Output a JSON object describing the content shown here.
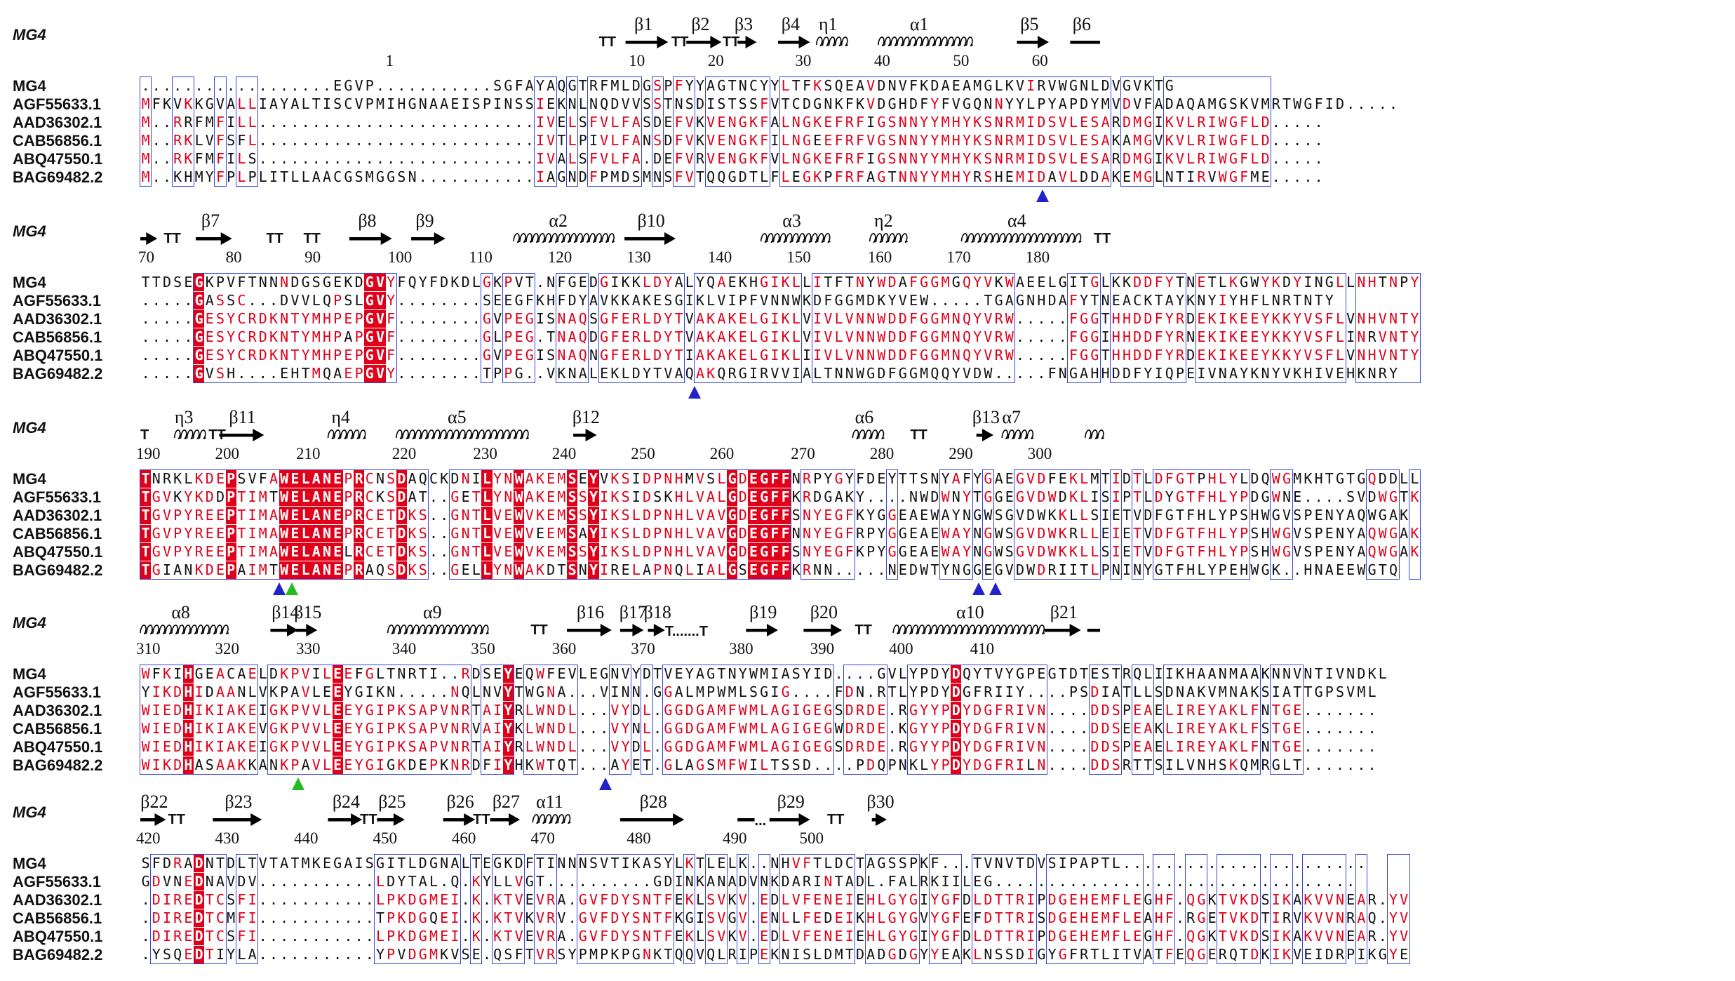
{
  "figure": {
    "ref_label": "MG4",
    "blocks": [
      {
        "start_col": 0,
        "ss": [
          {
            "t": "TT",
            "col": 43.0
          },
          {
            "t": "arrow",
            "name": "β1",
            "from": 45.5,
            "to": 49.5
          },
          {
            "t": "TT",
            "col": 49.8
          },
          {
            "t": "arrow",
            "name": "β2",
            "from": 51.2,
            "to": 54.5
          },
          {
            "t": "TT",
            "col": 54.6
          },
          {
            "t": "arrow",
            "name": "β3",
            "from": 56.0,
            "to": 57.8
          },
          {
            "t": "arrow",
            "name": "β4",
            "from": 59.8,
            "to": 62.8
          },
          {
            "t": "helix",
            "name": "η1",
            "from": 63.4,
            "to": 66.2
          },
          {
            "t": "helix",
            "name": "α1",
            "from": 69.2,
            "to": 77.5
          },
          {
            "t": "arrow",
            "name": "β5",
            "from": 82.2,
            "to": 85.2
          },
          {
            "t": "line",
            "name": "β6",
            "from": 87.2,
            "to": 90.0
          }
        ],
        "numbers": [
          {
            "n": "1",
            "col": 23.4
          },
          {
            "n": "10",
            "col": 46.2
          },
          {
            "n": "20",
            "col": 53.6
          },
          {
            "n": "30",
            "col": 61.8
          },
          {
            "n": "40",
            "col": 69.2
          },
          {
            "n": "50",
            "col": 76.6
          },
          {
            "n": "60",
            "col": 84.0
          }
        ],
        "seqs": [
          "..................EGVP...........SGFAYAQGTRFMLDGSPFYYAGTNCYYLTFKSQEAVDNVFKDAEAMGLKVIRVWGNLDVGVKTG",
          "MFKVKKGVALLIAYALTISCVPMIHGNAAEISPINSSIEKNLNQDVVSSTNSDISTSSFVTCDGNKFKVDGHDFYFVGQNNYYLPYAPDYMVDVFADAQAMGSKVMRTWGFID.....",
          "M..RRFMFILL..........................IVELSFVLFASDEFVKVENGKFALNGKEFRFIGSNNYYMHYKSNRMIDSVLESARDMGIKVLRIWGFLD.....",
          "M..RKLVFSFL..........................IVTLPIVLFANSDFVKVENGKFILNGEEFRFVGSNNYYMHYKSNRMIDSVLESAKAMGVKVLRIWGFLD.....",
          "M..RKFMFILS..........................IVALSFVLFA.DEFVRVENGKFVLNGKEFRFIGSNNYYMHYKSNRMIDSVLESARDMGIKVLRIWGFLD.....",
          "M..KHMYFPLPLITLLAACGSMGGSN...........IAGNDFPMDSMNSFVTQQGDTLFLEGKPFRFAGTNNYYMHYRSHEMIDAVLDDAKEMGLNTIRVWGFME....."
        ],
        "tris": [
          {
            "col": 84.6,
            "c": "blue"
          }
        ]
      },
      {
        "start_col": 0,
        "ss": [
          {
            "t": "arrow",
            "name": "",
            "from": 0.0,
            "to": 1.6
          },
          {
            "t": "TT",
            "col": 2.2
          },
          {
            "t": "arrow",
            "name": "β7",
            "from": 5.2,
            "to": 8.6
          },
          {
            "t": "TT",
            "col": 11.8
          },
          {
            "t": "TT",
            "col": 15.3
          },
          {
            "t": "arrow",
            "name": "β8",
            "from": 19.6,
            "to": 23.6
          },
          {
            "t": "arrow",
            "name": "β9",
            "from": 25.4,
            "to": 28.6
          },
          {
            "t": "helix",
            "name": "α2",
            "from": 35.0,
            "to": 44.0
          },
          {
            "t": "arrow",
            "name": "β10",
            "from": 45.4,
            "to": 50.2
          },
          {
            "t": "helix",
            "name": "α3",
            "from": 58.2,
            "to": 64.6
          },
          {
            "t": "helix",
            "name": "η2",
            "from": 68.4,
            "to": 71.6
          },
          {
            "t": "helix",
            "name": "α4",
            "from": 77.0,
            "to": 88.0
          },
          {
            "t": "TT",
            "col": 89.4
          }
        ],
        "numbers": [
          {
            "n": "70",
            "col": 0.2
          },
          {
            "n": "80",
            "col": 8.4
          },
          {
            "n": "90",
            "col": 15.8
          },
          {
            "n": "100",
            "col": 23.6
          },
          {
            "n": "110",
            "col": 31.2
          },
          {
            "n": "120",
            "col": 38.6
          },
          {
            "n": "130",
            "col": 46.0
          },
          {
            "n": "140",
            "col": 53.6
          },
          {
            "n": "150",
            "col": 61.0
          },
          {
            "n": "160",
            "col": 68.6
          },
          {
            "n": "170",
            "col": 76.0
          },
          {
            "n": "180",
            "col": 83.4
          }
        ],
        "seqs": [
          "TTDSEGKPVFTNNNDGSGEKDGVYFQYFDKDLGKPVT.NFGEDGIKKLDYALYQAEKHGIKLLITFTNYWDAFGGMGQYVKWAEELGITGLKKDDFYTNETLKGWYKDYINGLLNHTNPY",
          ".....GASSC...DVVLQPSLGVY........SEEGFKHFDYAVKKAKESGIKLVIPFVNNWKDFGGMDKYVEW.....TGAGNHDAFYTNEACKTAYKNYIYHFLNRTNTY",
          ".....GESYCRDKNTYMHPEPGVF........GVPEGISNAQSGFERLDYTVAKAKELGIKLVIVLVNNWDDFGGMNQYVRW.....FGGTHHDDFYRDEKIKEEYKKYVSFLVNHVNTY",
          ".....GESYCRDKNTYMHPAPGVF........GLPEG.TNAQDGFERLDYTVAKAKELGIKLVIVLVNNWDDFGGMNQYVRW.....FGGIHHDDFYRNEKIKEEYKKYVSFLINRVNTY",
          ".....GESYCRDKNTYMHPEPGVF........GVPEGISNAQNGFERLDYTIAKAKELGIKLIIVLVNNWDDFGGMNQYVRW.....FGGTHHDDFYRDEKIKEEYKKYVSFLVNHVNTY",
          ".....GVSH....EHTMQAEPGVY........TPPG..VKNALEKLDYTVAQAKQRGIRVVIALTNNWGDFGGMQQYVDW.....FNGAHHDDFYIQPEIVNAYKNYVKHIVEHKNRY"
        ],
        "tris": [
          {
            "col": 52.0,
            "c": "blue"
          }
        ]
      },
      {
        "start_col": 0,
        "ss": [
          {
            "t": "TT1",
            "col": 0.0
          },
          {
            "t": "helix",
            "name": "η3",
            "from": 3.2,
            "to": 5.6
          },
          {
            "t": "TT",
            "col": 6.4
          },
          {
            "t": "arrow",
            "name": "β11",
            "from": 7.4,
            "to": 11.6
          },
          {
            "t": "helix",
            "name": "η4",
            "from": 17.6,
            "to": 20.6
          },
          {
            "t": "helix",
            "name": "α5",
            "from": 24.0,
            "to": 36.0
          },
          {
            "t": "arrow",
            "name": "β12",
            "from": 40.6,
            "to": 42.8
          },
          {
            "t": "helix",
            "name": "α6",
            "from": 66.8,
            "to": 69.6
          },
          {
            "t": "TT",
            "col": 72.2
          },
          {
            "t": "arrow",
            "name": "β13",
            "from": 78.4,
            "to": 80.0
          },
          {
            "t": "helix",
            "name": "α7",
            "from": 80.8,
            "to": 83.2
          },
          {
            "t": "helix",
            "name": "",
            "from": 88.6,
            "to": 90.0
          }
        ],
        "numbers": [
          {
            "n": "190",
            "col": 0.0
          },
          {
            "n": "200",
            "col": 7.4
          },
          {
            "n": "210",
            "col": 15.0
          },
          {
            "n": "220",
            "col": 24.0
          },
          {
            "n": "230",
            "col": 31.6
          },
          {
            "n": "240",
            "col": 39.0
          },
          {
            "n": "250",
            "col": 46.4
          },
          {
            "n": "260",
            "col": 53.8
          },
          {
            "n": "270",
            "col": 61.4
          },
          {
            "n": "280",
            "col": 68.8
          },
          {
            "n": "290",
            "col": 76.2
          },
          {
            "n": "300",
            "col": 83.6
          }
        ],
        "seqs": [
          "TNRKLKDEPSVFAWELANEPRCNSDAQCKDNILYNWAKEMSEYVKSIDPNHMVSLGDEGFFNRPYGYFDEYTTSNYAFYGAEGVDFEKLMTIDTLDFGTPHLYLDQWGMKHTGTGQDDLL",
          "TGVKYKDDPTIMTWELANEPRCKSDAT..GETLYNWAKEMSSYIKSIDSKHLVALGDEGFFKRDGAKY....NWDWNYTGGEGVDWDKLISIPTLDYGTFHLYPDGWNE....SVDWGTK",
          "TGVPYREEPTIMAWELANEPRCETDKS..GNTLVEWVKEMSSYIKSLDPNHLVAVGDEGFFSNYEGFKYGGEAEWAYNGWSGVDWKKLLSIETVDFGTFHLYPSHWGVSPENYAQWGAK",
          "TGVPYREEPTIMAWELANEPRCETDKS..GNTLVEWVEEMSAYIKSLDPNHLVAVGDEGFFNNYEGFRPYGGEAEWAYNGWSGVDWKRLLEIETVDFGTFHLYPSHWGVSPENYAQWGAK",
          "TGVPYREEPTIMAWELANELRCETDKS..GNTLVEWVKEMSSYIKSLDPNHLVAVGDEGFFSNYEGFKPYGGEAEWAYNGWSGVDWKKLLSIETVDFGTFHLYPSHWGVSPENYAQWGAK",
          "TGIANKDEPAIMTWELANEPRAQSDKS..GELLYNWAKDTSNYIRELAPNQLIALGSEGFFKRNN.....NEDWTYNGGEGVDWDRIITLPNINYGTFHLYPEHWGK..HNAEEWGTQ"
        ],
        "tris": [
          {
            "col": 13.0,
            "c": "blue"
          },
          {
            "col": 14.2,
            "c": "green"
          },
          {
            "col": 78.6,
            "c": "blue"
          },
          {
            "col": 80.2,
            "c": "blue"
          }
        ]
      },
      {
        "start_col": 0,
        "ss": [
          {
            "t": "helix",
            "name": "α8",
            "from": 0.0,
            "to": 8.2
          },
          {
            "t": "arrow",
            "name": "β14",
            "from": 12.2,
            "to": 14.8
          },
          {
            "t": "arrow",
            "name": "β15",
            "from": 14.6,
            "to": 16.6
          },
          {
            "t": "helix",
            "name": "α9",
            "from": 23.2,
            "to": 32.2
          },
          {
            "t": "TT",
            "col": 36.6
          },
          {
            "t": "arrow",
            "name": "β16",
            "from": 40.0,
            "to": 44.2
          },
          {
            "t": "arrow",
            "name": "β17",
            "from": 45.0,
            "to": 47.2
          },
          {
            "t": "arrow",
            "name": "β18",
            "from": 47.6,
            "to": 49.2
          },
          {
            "t": "dots",
            "name": "T.......T",
            "col": 49.2
          },
          {
            "t": "arrow",
            "name": "β19",
            "from": 56.8,
            "to": 59.8
          },
          {
            "t": "arrow",
            "name": "β20",
            "from": 62.2,
            "to": 65.8
          },
          {
            "t": "TT",
            "col": 67.0
          },
          {
            "t": "helix",
            "name": "α10",
            "from": 70.6,
            "to": 84.8
          },
          {
            "t": "arrow",
            "name": "β21",
            "from": 84.8,
            "to": 88.2
          },
          {
            "t": "line",
            "name": "",
            "from": 88.8,
            "to": 90.0
          }
        ],
        "numbers": [
          {
            "n": "310",
            "col": 0.0
          },
          {
            "n": "320",
            "col": 7.4
          },
          {
            "n": "330",
            "col": 15.0
          },
          {
            "n": "340",
            "col": 24.0
          },
          {
            "n": "350",
            "col": 31.4
          },
          {
            "n": "360",
            "col": 39.0
          },
          {
            "n": "370",
            "col": 46.4
          },
          {
            "n": "380",
            "col": 55.6
          },
          {
            "n": "390",
            "col": 63.2
          },
          {
            "n": "400",
            "col": 70.6
          },
          {
            "n": "410",
            "col": 78.2
          }
        ],
        "seqs": [
          "WFKIHGEACAELDKPVILEEFGLTNRTI..RDSEYEQWFEVLEGNVYDTVEYAGTNYWMIASYID....GVLYPDYDQYTVYGPEGTDTESTRQLIIKHAANMAAKNNVNTIVNDKL",
          "YIKDHIDAANLVKPAVLEEYGIKN.....NQLNVYTWGNA...VINN.GGALMPWMLSGIG....FDN.RTLYPDYDGFRIIY....PSDIATLLSDNAKVMNAKSIATTGPSVML",
          "WIEDHIKIAKEIGKPVVLEEYGIPKSAPVNRTAIYRLWNDL...VYDL.GGDGAMFWMLAGIGEGSDRDE.RGYYPDYDGFRIVN....DDSPEAELIREYAKLFNTGE.......",
          "WIEDHIKIAKEVGKPVVLEEYGIPKSAPVNRVAIYKLWNDL...VYNL.GGDGAMFWMLAGIGEGWDRDE.KGYYPDYDGFRIVN....DDSEEAKLIREYAKLFSTGE.......",
          "WIEDHIKIAKEIGKPVVLEEYGIPKSAPVNRTAIYRLWNDL...VYDL.GGDGAMFWMLAGIGEGSDRDE.RGYYPDYDGFRIVN....DDSPEAELIREYAKLFNTGE.......",
          "WIKDHASAAKKANKPAVLEEYGIGKDEPKNRDFIYHKWTQT...AYET.GLAGSMFWILTSSD....PDQPNKLYPDYDGFRILN....DDSRTTSILVNHSKQMRGLT......."
        ],
        "tris": [
          {
            "col": 14.8,
            "c": "green"
          },
          {
            "col": 43.6,
            "c": "blue"
          }
        ]
      },
      {
        "start_col": 0,
        "ss": [
          {
            "t": "arrow",
            "name": "β22",
            "from": 0.0,
            "to": 2.4
          },
          {
            "t": "TT",
            "col": 2.6
          },
          {
            "t": "arrow",
            "name": "β23",
            "from": 6.8,
            "to": 11.4
          },
          {
            "t": "arrow",
            "name": "β24",
            "from": 17.6,
            "to": 20.8
          },
          {
            "t": "TT",
            "col": 20.6
          },
          {
            "t": "arrow",
            "name": "β25",
            "from": 22.2,
            "to": 24.8
          },
          {
            "t": "arrow",
            "name": "β26",
            "from": 28.4,
            "to": 31.4
          },
          {
            "t": "TT",
            "col": 31.2
          },
          {
            "t": "arrow",
            "name": "β27",
            "from": 32.8,
            "to": 35.6
          },
          {
            "t": "helix",
            "name": "α11",
            "from": 36.8,
            "to": 39.8
          },
          {
            "t": "arrow",
            "name": "β28",
            "from": 45.0,
            "to": 51.0
          },
          {
            "t": "line",
            "name": "",
            "from": 56.0,
            "to": 57.6
          },
          {
            "t": "dots",
            "name": "...",
            "col": 57.6
          },
          {
            "t": "arrow",
            "name": "β29",
            "from": 59.0,
            "to": 62.8
          },
          {
            "t": "TT",
            "col": 64.4
          },
          {
            "t": "arrow",
            "name": "β30",
            "from": 68.6,
            "to": 70.0
          }
        ],
        "numbers": [
          {
            "n": "420",
            "col": 0.0
          },
          {
            "n": "430",
            "col": 7.4
          },
          {
            "n": "440",
            "col": 14.8
          },
          {
            "n": "450",
            "col": 22.2
          },
          {
            "n": "460",
            "col": 29.6
          },
          {
            "n": "470",
            "col": 37.0
          },
          {
            "n": "480",
            "col": 46.0
          },
          {
            "n": "490",
            "col": 55.0
          },
          {
            "n": "500",
            "col": 62.2
          }
        ],
        "seqs": [
          "SFDRADNTDLTVTATMKEGAISGITLDGNALTEGKDFTINNNSVTIKASYLKTLELK..NHVFTLDCTAGSSPKF...TVNVTDVSIPAPTL.......................",
          "GDVNEDNAVDV...........LDYTAL.Q.KYLLVGT..........GDINKANADVNKDARINTADL.FALRKIILEG..................................",
          ".DIREDTCSFI...........LPKDGMEI.K.KTVEVRA.GVFDYSNTFEKLSVKV.EDLVFENEIEHLGYGIYGFDLDTTRIPDGEHEMFLEGHF.QGKTVKDSIKAKVVNEAR.YV",
          ".DIREDTCMFI...........TPKDGQEI.K.KTVKVRV.GVFDYSNTFKGISVGV.ENLLFEDEIKHLGYGVYGFEFDTTRISDGEHEMFLEAHF.RGETVKDTIRVKVVNRAQ.YV",
          ".DIREDTCSFI...........LPKDGMEI.K.KTVEVRA.GVFDYSNTFEKLSVKV.EDLVFENEIEHLGYGIYGFDLDTTRIPDGEHEMFLEGHF.QGKTVKDSIKAKVVNEAR.YV",
          ".YSQEDTIYLA...........YPVDGMKVSE.QSFTVRSYPMPKPGNKTQQVQLRIPEKNISLDMTDADGDGYYEAKLNSSDIGYGFRTLITVATFEQGERQTDKIKVEIDRPIKGYE"
        ],
        "tris": []
      }
    ],
    "seq_names": [
      "MG4",
      "AGF55633.1",
      "AAD36302.1",
      "CAB56856.1",
      "ABQ47550.1",
      "BAG69482.2"
    ],
    "colors": {
      "identical_bg": "#e0001a",
      "similar_fg": "#e0001a",
      "box": "#3344dd",
      "tri_blue": "#2222cc",
      "tri_green": "#22bb22"
    }
  }
}
